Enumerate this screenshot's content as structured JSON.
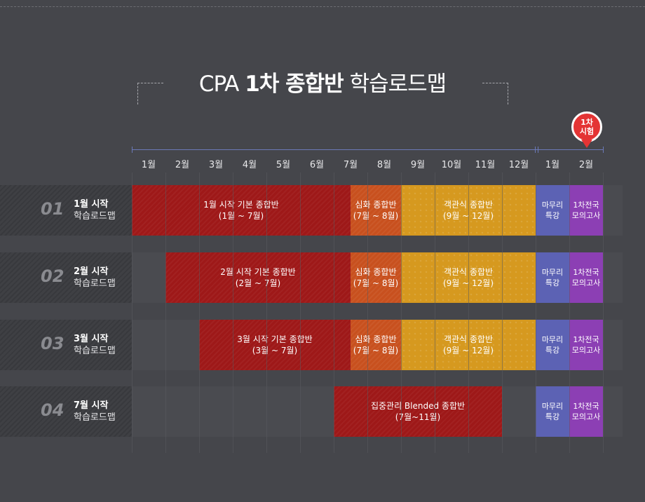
{
  "title": {
    "prefix": "CPA",
    "bold": "1차 종합반",
    "suffix": "학습로드맵"
  },
  "months": [
    "1월",
    "2월",
    "3월",
    "4월",
    "5월",
    "6월",
    "7월",
    "8월",
    "9월",
    "10월",
    "11월",
    "12월",
    "1월",
    "2월"
  ],
  "exam_marker": {
    "line1": "1차",
    "line2": "시험",
    "color": "#e43434"
  },
  "rows": [
    {
      "num": "01",
      "label1": "1월 시작",
      "label2": "학습로드맵",
      "bars": [
        {
          "text": "1월 시작 기본 종합반\n(1월 ~ 7월)",
          "start": 1,
          "end": 7.5,
          "kind": "red"
        },
        {
          "text": "심화 종합반\n(7월 ~ 8월)",
          "start": 7.5,
          "end": 9,
          "kind": "orange"
        },
        {
          "text": "객관식 종합반\n(9월 ~ 12월)",
          "start": 9,
          "end": 13,
          "kind": "yellow"
        },
        {
          "text": "마무리\n특강",
          "start": 13,
          "end": 14,
          "kind": "blue"
        },
        {
          "text": "1차전국\n모의고사",
          "start": 14,
          "end": 15,
          "kind": "purple"
        }
      ]
    },
    {
      "num": "02",
      "label1": "2월 시작",
      "label2": "학습로드맵",
      "bars": [
        {
          "text": "2월 시작 기본 종합반\n(2월 ~ 7월)",
          "start": 2,
          "end": 7.5,
          "kind": "red"
        },
        {
          "text": "심화 종합반\n(7월 ~ 8월)",
          "start": 7.5,
          "end": 9,
          "kind": "orange"
        },
        {
          "text": "객관식 종합반\n(9월 ~ 12월)",
          "start": 9,
          "end": 13,
          "kind": "yellow"
        },
        {
          "text": "마무리\n특강",
          "start": 13,
          "end": 14,
          "kind": "blue"
        },
        {
          "text": "1차전국\n모의고사",
          "start": 14,
          "end": 15,
          "kind": "purple"
        }
      ]
    },
    {
      "num": "03",
      "label1": "3월 시작",
      "label2": "학습로드맵",
      "bars": [
        {
          "text": "3월 시작 기본 종합반\n(3월 ~ 7월)",
          "start": 3,
          "end": 7.5,
          "kind": "red"
        },
        {
          "text": "심화 종합반\n(7월 ~ 8월)",
          "start": 7.5,
          "end": 9,
          "kind": "orange"
        },
        {
          "text": "객관식 종합반\n(9월 ~ 12월)",
          "start": 9,
          "end": 13,
          "kind": "yellow"
        },
        {
          "text": "마무리\n특강",
          "start": 13,
          "end": 14,
          "kind": "blue"
        },
        {
          "text": "1차전국\n모의고사",
          "start": 14,
          "end": 15,
          "kind": "purple"
        }
      ]
    },
    {
      "num": "04",
      "label1": "7월 시작",
      "label2": "학습로드맵",
      "bars": [
        {
          "text": "집중관리 Blended 종합반\n(7월~11월)",
          "start": 7,
          "end": 12,
          "kind": "red"
        },
        {
          "text": "마무리\n특강",
          "start": 13,
          "end": 14,
          "kind": "blue"
        },
        {
          "text": "1차전국\n모의고사",
          "start": 14,
          "end": 15,
          "kind": "purple"
        }
      ]
    }
  ]
}
